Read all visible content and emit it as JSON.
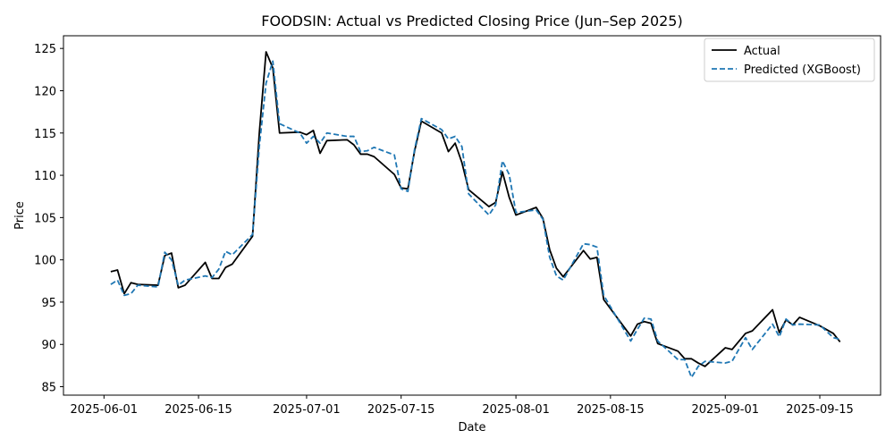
{
  "chart_data": {
    "type": "line",
    "title": "FOODSIN: Actual vs Predicted Closing Price (Jun–Sep 2025)",
    "xlabel": "Date",
    "ylabel": "Price",
    "xlim": [
      "2025-05-26",
      "2025-09-24"
    ],
    "ylim": [
      84,
      126.5
    ],
    "x_ticks": [
      "2025-06-01",
      "2025-06-15",
      "2025-07-01",
      "2025-07-15",
      "2025-08-01",
      "2025-08-15",
      "2025-09-01",
      "2025-09-15"
    ],
    "y_ticks": [
      85,
      90,
      95,
      100,
      105,
      110,
      115,
      120,
      125
    ],
    "grid": false,
    "legend_position": "top-right",
    "series": [
      {
        "name": "Actual",
        "color": "#000000",
        "style": "solid",
        "points": [
          [
            "2025-06-02",
            98.6
          ],
          [
            "2025-06-03",
            98.8
          ],
          [
            "2025-06-04",
            96.0
          ],
          [
            "2025-06-05",
            97.3
          ],
          [
            "2025-06-06",
            97.1
          ],
          [
            "2025-06-09",
            97.0
          ],
          [
            "2025-06-10",
            100.5
          ],
          [
            "2025-06-11",
            100.8
          ],
          [
            "2025-06-12",
            96.7
          ],
          [
            "2025-06-13",
            97.0
          ],
          [
            "2025-06-16",
            99.7
          ],
          [
            "2025-06-17",
            97.8
          ],
          [
            "2025-06-18",
            97.8
          ],
          [
            "2025-06-19",
            99.1
          ],
          [
            "2025-06-20",
            99.5
          ],
          [
            "2025-06-23",
            102.8
          ],
          [
            "2025-06-24",
            115.0
          ],
          [
            "2025-06-25",
            124.6
          ],
          [
            "2025-06-26",
            122.7
          ],
          [
            "2025-06-27",
            115.0
          ],
          [
            "2025-06-30",
            115.1
          ],
          [
            "2025-07-01",
            114.8
          ],
          [
            "2025-07-02",
            115.3
          ],
          [
            "2025-07-03",
            112.6
          ],
          [
            "2025-07-04",
            114.1
          ],
          [
            "2025-07-07",
            114.2
          ],
          [
            "2025-07-08",
            113.6
          ],
          [
            "2025-07-09",
            112.5
          ],
          [
            "2025-07-10",
            112.5
          ],
          [
            "2025-07-11",
            112.2
          ],
          [
            "2025-07-14",
            110.1
          ],
          [
            "2025-07-15",
            108.5
          ],
          [
            "2025-07-16",
            108.4
          ],
          [
            "2025-07-17",
            112.9
          ],
          [
            "2025-07-18",
            116.4
          ],
          [
            "2025-07-21",
            115.0
          ],
          [
            "2025-07-22",
            112.8
          ],
          [
            "2025-07-23",
            113.8
          ],
          [
            "2025-07-24",
            111.5
          ],
          [
            "2025-07-25",
            108.3
          ],
          [
            "2025-07-28",
            106.3
          ],
          [
            "2025-07-29",
            106.8
          ],
          [
            "2025-07-30",
            110.4
          ],
          [
            "2025-07-31",
            107.4
          ],
          [
            "2025-08-01",
            105.3
          ],
          [
            "2025-08-04",
            106.2
          ],
          [
            "2025-08-05",
            104.9
          ],
          [
            "2025-08-06",
            101.2
          ],
          [
            "2025-08-07",
            99.0
          ],
          [
            "2025-08-08",
            98.0
          ],
          [
            "2025-08-11",
            101.1
          ],
          [
            "2025-08-12",
            100.1
          ],
          [
            "2025-08-13",
            100.3
          ],
          [
            "2025-08-14",
            95.3
          ],
          [
            "2025-08-18",
            91.0
          ],
          [
            "2025-08-19",
            92.4
          ],
          [
            "2025-08-20",
            92.7
          ],
          [
            "2025-08-21",
            92.5
          ],
          [
            "2025-08-22",
            90.1
          ],
          [
            "2025-08-25",
            89.2
          ],
          [
            "2025-08-26",
            88.3
          ],
          [
            "2025-08-27",
            88.3
          ],
          [
            "2025-08-28",
            87.8
          ],
          [
            "2025-08-29",
            87.4
          ],
          [
            "2025-09-01",
            89.6
          ],
          [
            "2025-09-02",
            89.4
          ],
          [
            "2025-09-04",
            91.3
          ],
          [
            "2025-09-05",
            91.6
          ],
          [
            "2025-09-08",
            94.1
          ],
          [
            "2025-09-09",
            91.4
          ],
          [
            "2025-09-10",
            92.9
          ],
          [
            "2025-09-11",
            92.3
          ],
          [
            "2025-09-12",
            93.2
          ],
          [
            "2025-09-15",
            92.2
          ],
          [
            "2025-09-17",
            91.3
          ],
          [
            "2025-09-18",
            90.3
          ]
        ]
      },
      {
        "name": "Predicted (XGBoost)",
        "color": "#1f77b4",
        "style": "dashed",
        "points": [
          [
            "2025-06-02",
            97.1
          ],
          [
            "2025-06-03",
            97.6
          ],
          [
            "2025-06-04",
            95.8
          ],
          [
            "2025-06-05",
            96.0
          ],
          [
            "2025-06-06",
            97.0
          ],
          [
            "2025-06-09",
            96.8
          ],
          [
            "2025-06-10",
            100.9
          ],
          [
            "2025-06-11",
            100.0
          ],
          [
            "2025-06-12",
            97.0
          ],
          [
            "2025-06-13",
            97.6
          ],
          [
            "2025-06-16",
            98.1
          ],
          [
            "2025-06-17",
            97.9
          ],
          [
            "2025-06-18",
            98.9
          ],
          [
            "2025-06-19",
            101.0
          ],
          [
            "2025-06-20",
            100.6
          ],
          [
            "2025-06-23",
            103.0
          ],
          [
            "2025-06-24",
            113.4
          ],
          [
            "2025-06-25",
            120.9
          ],
          [
            "2025-06-26",
            123.5
          ],
          [
            "2025-06-27",
            116.1
          ],
          [
            "2025-06-30",
            115.0
          ],
          [
            "2025-07-01",
            113.8
          ],
          [
            "2025-07-02",
            114.6
          ],
          [
            "2025-07-03",
            113.8
          ],
          [
            "2025-07-04",
            115.0
          ],
          [
            "2025-07-07",
            114.6
          ],
          [
            "2025-07-08",
            114.6
          ],
          [
            "2025-07-09",
            112.8
          ],
          [
            "2025-07-10",
            112.9
          ],
          [
            "2025-07-11",
            113.3
          ],
          [
            "2025-07-14",
            112.4
          ],
          [
            "2025-07-15",
            108.4
          ],
          [
            "2025-07-16",
            108.1
          ],
          [
            "2025-07-17",
            113.1
          ],
          [
            "2025-07-18",
            116.7
          ],
          [
            "2025-07-21",
            115.4
          ],
          [
            "2025-07-22",
            114.3
          ],
          [
            "2025-07-23",
            114.6
          ],
          [
            "2025-07-24",
            113.4
          ],
          [
            "2025-07-25",
            107.8
          ],
          [
            "2025-07-28",
            105.3
          ],
          [
            "2025-07-29",
            106.5
          ],
          [
            "2025-07-30",
            111.7
          ],
          [
            "2025-07-31",
            110.1
          ],
          [
            "2025-08-01",
            105.6
          ],
          [
            "2025-08-04",
            105.9
          ],
          [
            "2025-08-05",
            104.8
          ],
          [
            "2025-08-06",
            100.3
          ],
          [
            "2025-08-07",
            98.1
          ],
          [
            "2025-08-08",
            97.6
          ],
          [
            "2025-08-11",
            101.9
          ],
          [
            "2025-08-12",
            101.8
          ],
          [
            "2025-08-13",
            101.5
          ],
          [
            "2025-08-14",
            95.8
          ],
          [
            "2025-08-18",
            90.4
          ],
          [
            "2025-08-19",
            91.8
          ],
          [
            "2025-08-20",
            93.1
          ],
          [
            "2025-08-21",
            93.0
          ],
          [
            "2025-08-22",
            90.4
          ],
          [
            "2025-08-25",
            88.2
          ],
          [
            "2025-08-26",
            88.2
          ],
          [
            "2025-08-27",
            86.1
          ],
          [
            "2025-08-28",
            87.4
          ],
          [
            "2025-08-29",
            88.0
          ],
          [
            "2025-09-01",
            87.8
          ],
          [
            "2025-09-02",
            88.0
          ],
          [
            "2025-09-04",
            90.8
          ],
          [
            "2025-09-05",
            89.4
          ],
          [
            "2025-09-08",
            92.4
          ],
          [
            "2025-09-09",
            90.9
          ],
          [
            "2025-09-10",
            93.0
          ],
          [
            "2025-09-11",
            92.3
          ],
          [
            "2025-09-12",
            92.4
          ],
          [
            "2025-09-15",
            92.3
          ],
          [
            "2025-09-17",
            90.8
          ],
          [
            "2025-09-18",
            90.6
          ]
        ]
      }
    ]
  }
}
